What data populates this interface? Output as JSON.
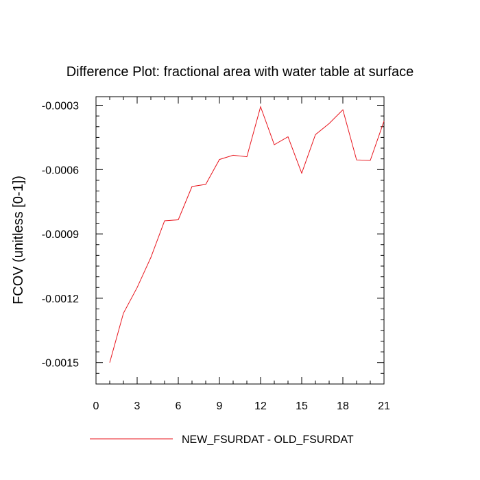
{
  "chart_data": {
    "type": "line",
    "title": "Difference Plot: fractional area with water table at surface",
    "xlabel": "",
    "ylabel": "FCOV  (unitless [0-1])",
    "xlim": [
      0,
      21
    ],
    "ylim": [
      -0.0016,
      -0.00026
    ],
    "x_ticks": [
      0,
      3,
      6,
      9,
      12,
      15,
      18,
      21
    ],
    "x_tick_labels": [
      "0",
      "3",
      "6",
      "9",
      "12",
      "15",
      "18",
      "21"
    ],
    "y_ticks": [
      -0.0015,
      -0.0012,
      -0.0009,
      -0.0006,
      -0.0003
    ],
    "y_tick_labels": [
      "-0.0015",
      "-0.0012",
      "-0.0009",
      "-0.0006",
      "-0.0003"
    ],
    "grid": false,
    "legend_position": "bottom",
    "series": [
      {
        "name": "NEW_FSURDAT - OLD_FSURDAT",
        "color": "#e8141c",
        "x": [
          1,
          2,
          3,
          4,
          5,
          6,
          7,
          8,
          9,
          10,
          11,
          12,
          13,
          14,
          15,
          16,
          17,
          18,
          19,
          20,
          21
        ],
        "y": [
          -0.0015,
          -0.00127,
          -0.00115,
          -0.00101,
          -0.000839,
          -0.000834,
          -0.000679,
          -0.000669,
          -0.000553,
          -0.000533,
          -0.00054,
          -0.000307,
          -0.000484,
          -0.000447,
          -0.000617,
          -0.000437,
          -0.000385,
          -0.000321,
          -0.000555,
          -0.000557,
          -0.000374
        ]
      }
    ]
  }
}
